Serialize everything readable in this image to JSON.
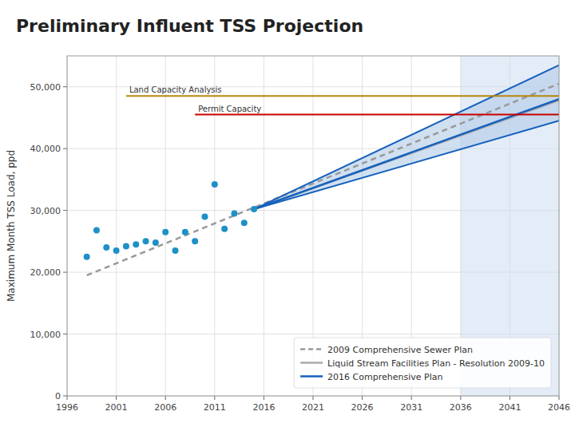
{
  "chart_data": {
    "type": "line",
    "title": "Preliminary Influent TSS Projection",
    "ylabel": "Maximum Month TSS Load, ppd",
    "xlim": [
      1996,
      2046
    ],
    "ylim": [
      0,
      55000
    ],
    "xticks": [
      1996,
      2001,
      2006,
      2011,
      2016,
      2021,
      2026,
      2031,
      2036,
      2041,
      2046
    ],
    "yticks": [
      0,
      {
        "value": 10000,
        "label": "10,000"
      },
      {
        "value": 20000,
        "label": "20,000"
      },
      {
        "value": 30000,
        "label": "30,000"
      },
      {
        "value": 40000,
        "label": "40,000"
      },
      {
        "value": 50000,
        "label": "50,000"
      }
    ],
    "grid": true,
    "legend": "lower right",
    "spans": [
      {
        "x_start": 2036,
        "x_end": 2046,
        "color": "#ccddf0"
      }
    ],
    "series": [
      {
        "type": "area",
        "color": "#b0cce8",
        "x": [
          2015,
          2046
        ],
        "values": [
          30200,
          53500
        ],
        "lower": [
          30200,
          44500
        ]
      },
      {
        "name": "2009 Comprehensive Sewer Plan",
        "type": "line",
        "line_style": "dashed",
        "color": "#999999",
        "x": [
          1998,
          2046
        ],
        "values": [
          19500,
          50500
        ]
      },
      {
        "name": "Liquid Stream Facilities Plan - Resolution 2009-10",
        "type": "line",
        "line_style": "solid",
        "color": "#aaaaaa",
        "x": [
          2015,
          2046
        ],
        "values": [
          30200,
          47800
        ]
      },
      {
        "type": "line",
        "line_style": "solid",
        "color": "#1560bd",
        "x": [
          2015,
          2046
        ],
        "values": [
          30200,
          53500
        ]
      },
      {
        "type": "line",
        "line_style": "solid",
        "color": "#1560bd",
        "x": [
          2015,
          2046
        ],
        "values": [
          30200,
          44500
        ]
      },
      {
        "name": "2016 Comprehensive Plan",
        "type": "line",
        "line_style": "solid",
        "color": "#1560bd",
        "x": [
          2015,
          2046
        ],
        "values": [
          30200,
          48000
        ]
      },
      {
        "type": "line",
        "line_style": "solid",
        "color": "#b8860b",
        "x": [
          2002,
          2046
        ],
        "values": [
          48500,
          48500
        ]
      },
      {
        "type": "line",
        "line_style": "solid",
        "color": "#cc0000",
        "x": [
          2009,
          2046
        ],
        "values": [
          45500,
          45500
        ]
      },
      {
        "type": "scatter",
        "color": "#1e90c8",
        "x": [
          1998,
          1999,
          2000,
          2001,
          2002,
          2003,
          2004,
          2005,
          2006,
          2007,
          2008,
          2009,
          2010,
          2011,
          2012,
          2013,
          2014,
          2015
        ],
        "values": [
          22500,
          26800,
          24000,
          23500,
          24200,
          24500,
          25000,
          24800,
          26500,
          23500,
          26500,
          25000,
          29000,
          34200,
          27000,
          29500,
          28000,
          30200
        ]
      }
    ],
    "annotations": [
      {
        "text": "Land Capacity Analysis",
        "x": 2002,
        "y": 48500
      },
      {
        "text": "Permit Capacity",
        "x": 2009,
        "y": 45500
      }
    ]
  }
}
